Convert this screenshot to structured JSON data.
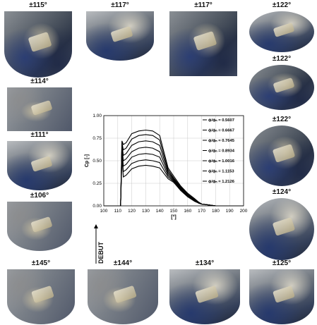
{
  "tiles": [
    {
      "label": "±115°"
    },
    {
      "label": "±117°"
    },
    {
      "label": "±117°"
    },
    {
      "label": "±122°"
    },
    {
      "label": "±122°"
    },
    {
      "label": "±114°"
    },
    {
      "label": "±122°"
    },
    {
      "label": "±111°"
    },
    {
      "label": "±124°"
    },
    {
      "label": "±106°"
    },
    {
      "label": "±145°"
    },
    {
      "label": "±144°"
    },
    {
      "label": "±134°"
    },
    {
      "label": "±125°"
    }
  ],
  "debut_label": "DEBUT",
  "chart_data": {
    "type": "line",
    "ylabel": "Cp [-]",
    "xlabel": "[°]",
    "xlim": [
      100,
      200
    ],
    "ylim": [
      0,
      1.0
    ],
    "xticks": [
      100,
      110,
      120,
      130,
      140,
      150,
      160,
      170,
      180,
      190,
      200
    ],
    "yticks": [
      0.0,
      0.25,
      0.5,
      0.75,
      1.0
    ],
    "ytick_labels": [
      "0.00",
      "0.25",
      "0.50",
      "0.75",
      "1.00"
    ],
    "grid": true,
    "legend_position": "right",
    "x": [
      100,
      112,
      113,
      114,
      116,
      120,
      125,
      130,
      135,
      140,
      143,
      146,
      150,
      155,
      160,
      165,
      168,
      170,
      175,
      180,
      190,
      200
    ],
    "series": [
      {
        "name": "ϕ/ϕₙ = 0.5607",
        "values": [
          0,
          0,
          0.72,
          0.68,
          0.7,
          0.8,
          0.83,
          0.84,
          0.83,
          0.78,
          0.6,
          0.42,
          0.33,
          0.22,
          0.14,
          0.08,
          0.04,
          0.02,
          0.01,
          0.0,
          0.0,
          0.0
        ]
      },
      {
        "name": "ϕ/ϕₙ = 0.6667",
        "values": [
          0,
          0,
          0.7,
          0.62,
          0.64,
          0.74,
          0.78,
          0.79,
          0.78,
          0.73,
          0.56,
          0.4,
          0.31,
          0.21,
          0.13,
          0.07,
          0.04,
          0.02,
          0.01,
          0.0,
          0.0,
          0.0
        ]
      },
      {
        "name": "ϕ/ϕₙ = 0.7645",
        "values": [
          0,
          0,
          0.68,
          0.56,
          0.58,
          0.67,
          0.71,
          0.72,
          0.71,
          0.67,
          0.52,
          0.38,
          0.3,
          0.2,
          0.12,
          0.07,
          0.03,
          0.02,
          0.01,
          0.0,
          0.0,
          0.0
        ]
      },
      {
        "name": "ϕ/ϕₙ = 0.8934",
        "values": [
          0,
          0,
          0.66,
          0.5,
          0.52,
          0.6,
          0.64,
          0.65,
          0.64,
          0.6,
          0.48,
          0.36,
          0.29,
          0.2,
          0.12,
          0.06,
          0.03,
          0.02,
          0.01,
          0.0,
          0.0,
          0.0
        ]
      },
      {
        "name": "ϕ/ϕₙ = 1.0016",
        "values": [
          0,
          0,
          0.62,
          0.44,
          0.46,
          0.54,
          0.57,
          0.58,
          0.57,
          0.54,
          0.44,
          0.34,
          0.28,
          0.19,
          0.11,
          0.06,
          0.03,
          0.02,
          0.01,
          0.0,
          0.0,
          0.0
        ]
      },
      {
        "name": "ϕ/ϕₙ = 1.1153",
        "values": [
          0,
          0,
          0.58,
          0.38,
          0.4,
          0.47,
          0.5,
          0.51,
          0.5,
          0.48,
          0.4,
          0.32,
          0.27,
          0.18,
          0.11,
          0.06,
          0.03,
          0.02,
          0.01,
          0.0,
          0.0,
          0.0
        ]
      },
      {
        "name": "ϕ/ϕₙ = 1.2126",
        "values": [
          0,
          0,
          0.54,
          0.32,
          0.34,
          0.41,
          0.44,
          0.45,
          0.44,
          0.42,
          0.36,
          0.3,
          0.26,
          0.17,
          0.1,
          0.05,
          0.03,
          0.02,
          0.01,
          0.0,
          0.0,
          0.0
        ]
      }
    ]
  }
}
